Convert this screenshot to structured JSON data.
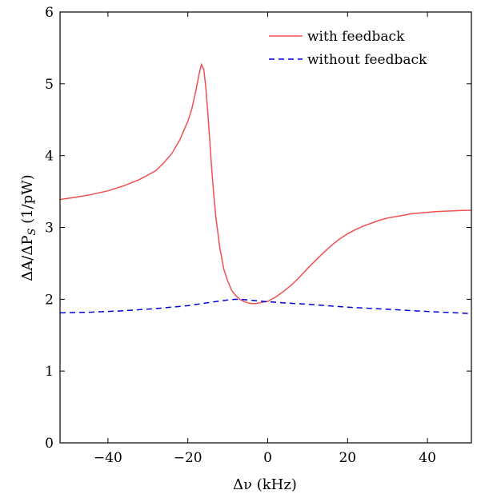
{
  "chart_data": {
    "type": "line",
    "xlabel": "Δν (kHz)",
    "ylabel": "ΔA/ΔP_S (1/pW)",
    "xlim": [
      -52,
      51
    ],
    "ylim": [
      0,
      6
    ],
    "xticks": [
      -40,
      -20,
      0,
      20,
      40
    ],
    "xtick_labels": [
      "−40",
      "−20",
      "0",
      "20",
      "40"
    ],
    "yticks": [
      0,
      1,
      2,
      3,
      4,
      5,
      6
    ],
    "ytick_labels": [
      "0",
      "1",
      "2",
      "3",
      "4",
      "5",
      "6"
    ],
    "grid": false,
    "legend_position": "top-right",
    "series": [
      {
        "name": "with feedback",
        "color": "#f05050",
        "style": "solid",
        "x": [
          -52,
          -48,
          -44,
          -40,
          -36,
          -32,
          -28,
          -26,
          -24,
          -22,
          -20,
          -19,
          -18,
          -17.2,
          -16.6,
          -16.0,
          -15.5,
          -15.0,
          -14.5,
          -14.0,
          -13.5,
          -13.0,
          -12.0,
          -11.0,
          -10.0,
          -9.0,
          -8.0,
          -7.0,
          -6.0,
          -5.0,
          -4.0,
          -3.0,
          -2.0,
          -1.0,
          0,
          2,
          4,
          6,
          8,
          10,
          12,
          14,
          16,
          18,
          20,
          22,
          24,
          26,
          28,
          30,
          32,
          34,
          36,
          38,
          40,
          42,
          44,
          46,
          48,
          51
        ],
        "y": [
          3.39,
          3.42,
          3.46,
          3.51,
          3.58,
          3.67,
          3.79,
          3.9,
          4.03,
          4.22,
          4.48,
          4.65,
          4.9,
          5.13,
          5.27,
          5.2,
          4.95,
          4.6,
          4.2,
          3.8,
          3.45,
          3.15,
          2.72,
          2.42,
          2.25,
          2.12,
          2.05,
          2.0,
          1.97,
          1.95,
          1.94,
          1.94,
          1.95,
          1.96,
          1.97,
          2.03,
          2.11,
          2.2,
          2.31,
          2.43,
          2.54,
          2.65,
          2.75,
          2.84,
          2.91,
          2.97,
          3.02,
          3.06,
          3.1,
          3.13,
          3.15,
          3.17,
          3.19,
          3.2,
          3.21,
          3.22,
          3.225,
          3.23,
          3.235,
          3.24
        ]
      },
      {
        "name": "without feedback",
        "color": "#0000dd",
        "style": "dashed",
        "x": [
          -52,
          -44,
          -36,
          -28,
          -20,
          -14,
          -10,
          -8,
          -6,
          -4,
          -2,
          0,
          4,
          10,
          20,
          30,
          40,
          51
        ],
        "y": [
          1.81,
          1.82,
          1.84,
          1.87,
          1.91,
          1.96,
          1.99,
          2.0,
          1.995,
          1.985,
          1.975,
          1.965,
          1.95,
          1.93,
          1.89,
          1.86,
          1.83,
          1.8
        ]
      }
    ]
  }
}
